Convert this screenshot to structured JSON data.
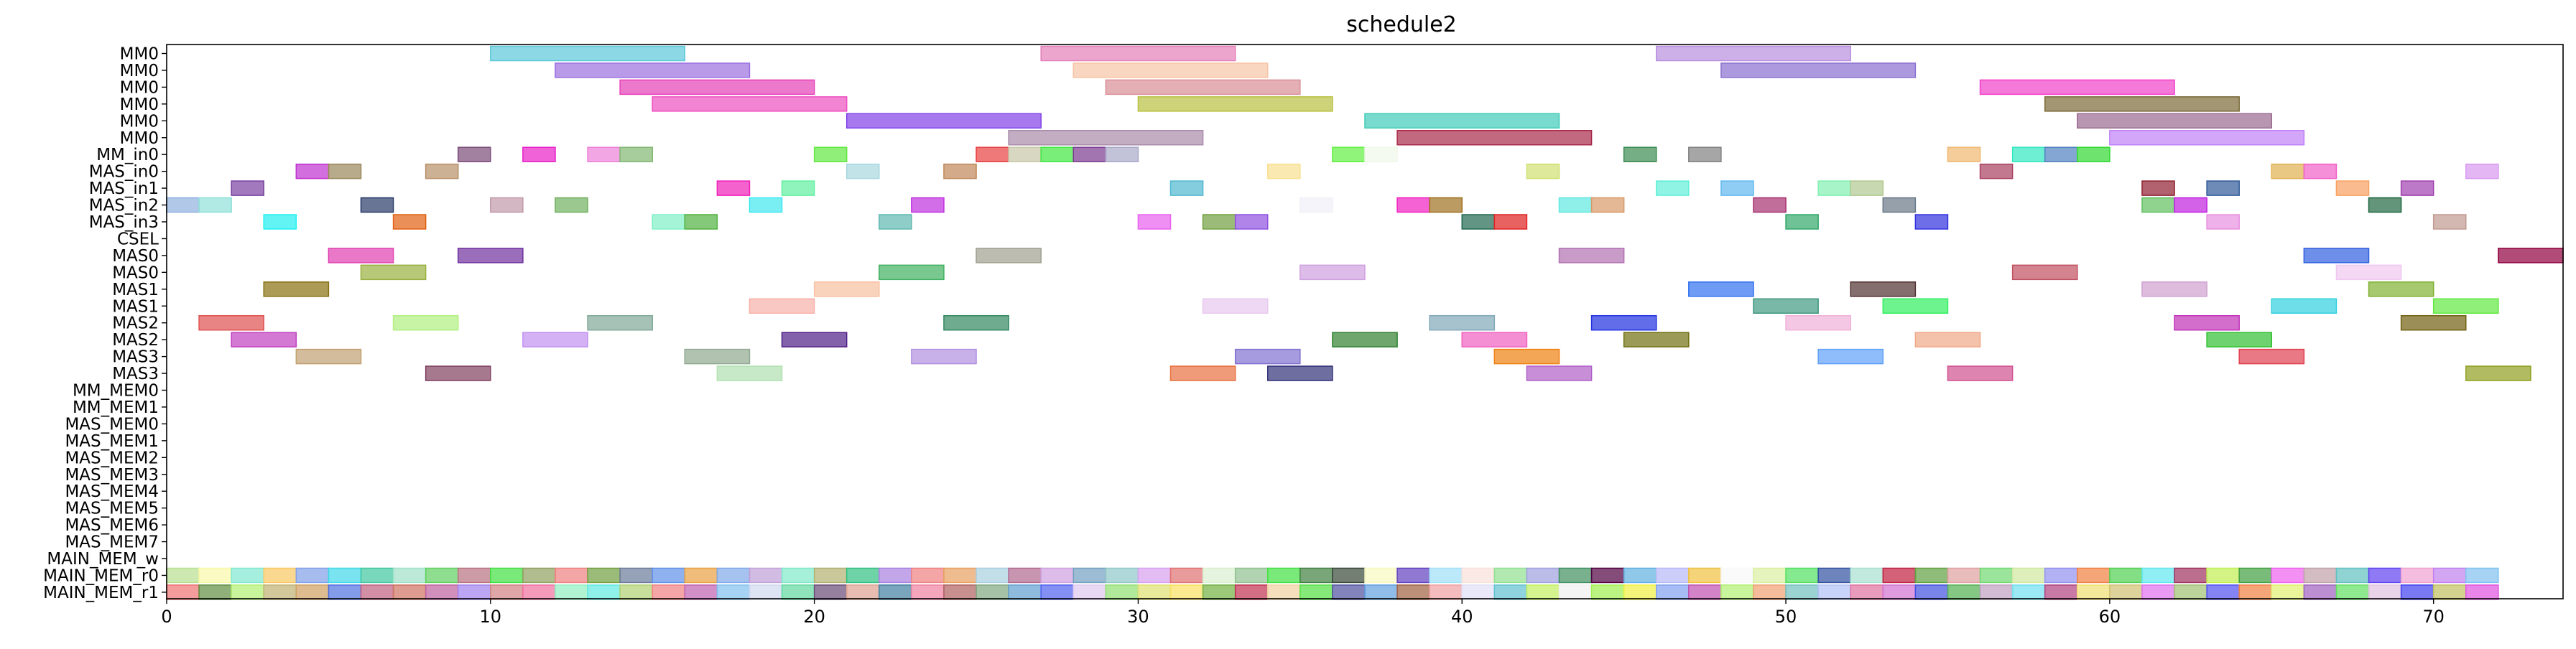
{
  "chart_data": {
    "type": "gantt",
    "title": "schedule2",
    "xlabel": "",
    "ylabel": "",
    "xlim": [
      0,
      74
    ],
    "x_ticks": [
      0,
      10,
      20,
      30,
      40,
      50,
      60,
      70
    ],
    "grid": false,
    "rows": [
      "MM0",
      "MM0",
      "MM0",
      "MM0",
      "MM0",
      "MM0",
      "MM_in0",
      "MAS_in0",
      "MAS_in1",
      "MAS_in2",
      "MAS_in3",
      "CSEL",
      "MAS0",
      "MAS0",
      "MAS1",
      "MAS1",
      "MAS2",
      "MAS2",
      "MAS3",
      "MAS3",
      "MM_MEM0",
      "MM_MEM1",
      "MAS_MEM0",
      "MAS_MEM1",
      "MAS_MEM2",
      "MAS_MEM3",
      "MAS_MEM4",
      "MAS_MEM5",
      "MAS_MEM6",
      "MAS_MEM7",
      "MAIN_MEM_w",
      "MAIN_MEM_r0",
      "MAIN_MEM_r1"
    ],
    "tasks": [
      {
        "row": 0,
        "start": 10,
        "end": 16,
        "color": "#5bc8d8"
      },
      {
        "row": 0,
        "start": 27,
        "end": 33,
        "color": "#e47fb8"
      },
      {
        "row": 0,
        "start": 46,
        "end": 52,
        "color": "#b98ee0"
      },
      {
        "row": 1,
        "start": 12,
        "end": 18,
        "color": "#9a6fe0"
      },
      {
        "row": 1,
        "start": 28,
        "end": 34,
        "color": "#f7c4a4"
      },
      {
        "row": 1,
        "start": 48,
        "end": 54,
        "color": "#8a6fd0"
      },
      {
        "row": 2,
        "start": 14,
        "end": 20,
        "color": "#e640b8"
      },
      {
        "row": 2,
        "start": 29,
        "end": 35,
        "color": "#d98f96"
      },
      {
        "row": 2,
        "start": 56,
        "end": 62,
        "color": "#f040c8"
      },
      {
        "row": 3,
        "start": 15,
        "end": 21,
        "color": "#ee50c0"
      },
      {
        "row": 3,
        "start": 30,
        "end": 36,
        "color": "#b8c040"
      },
      {
        "row": 3,
        "start": 58,
        "end": 64,
        "color": "#7a6a38"
      },
      {
        "row": 4,
        "start": 21,
        "end": 27,
        "color": "#8040e8"
      },
      {
        "row": 4,
        "start": 37,
        "end": 43,
        "color": "#40ccb8"
      },
      {
        "row": 4,
        "start": 59,
        "end": 65,
        "color": "#9a6a90"
      },
      {
        "row": 5,
        "start": 26,
        "end": 32,
        "color": "#a88aa8"
      },
      {
        "row": 5,
        "start": 38,
        "end": 44,
        "color": "#a82848"
      },
      {
        "row": 5,
        "start": 60,
        "end": 66,
        "color": "#c080f8"
      },
      {
        "row": 6,
        "start": 9,
        "end": 10,
        "color": "#7a4a78"
      },
      {
        "row": 6,
        "start": 11,
        "end": 12,
        "color": "#e820c8"
      },
      {
        "row": 6,
        "start": 13,
        "end": 14,
        "color": "#ee80d8"
      },
      {
        "row": 6,
        "start": 14,
        "end": 15,
        "color": "#80b870"
      },
      {
        "row": 6,
        "start": 20,
        "end": 21,
        "color": "#60e840"
      },
      {
        "row": 6,
        "start": 25,
        "end": 26,
        "color": "#e84040"
      },
      {
        "row": 6,
        "start": 26,
        "end": 27,
        "color": "#c8c8a8"
      },
      {
        "row": 6,
        "start": 27,
        "end": 28,
        "color": "#40e840"
      },
      {
        "row": 6,
        "start": 28,
        "end": 29,
        "color": "#7a3a90"
      },
      {
        "row": 6,
        "start": 29,
        "end": 30,
        "color": "#a8a8c8"
      },
      {
        "row": 6,
        "start": 36,
        "end": 37,
        "color": "#60f040"
      },
      {
        "row": 6,
        "start": 37,
        "end": 38,
        "color": "#f0f8e8"
      },
      {
        "row": 6,
        "start": 45,
        "end": 46,
        "color": "#3a8a50"
      },
      {
        "row": 6,
        "start": 47,
        "end": 48,
        "color": "#808080"
      },
      {
        "row": 6,
        "start": 55,
        "end": 56,
        "color": "#f0b870"
      },
      {
        "row": 6,
        "start": 57,
        "end": 58,
        "color": "#30e8c0"
      },
      {
        "row": 6,
        "start": 58,
        "end": 59,
        "color": "#5080c0"
      },
      {
        "row": 6,
        "start": 59,
        "end": 60,
        "color": "#30d830"
      },
      {
        "row": 7,
        "start": 4,
        "end": 5,
        "color": "#c030d0"
      },
      {
        "row": 7,
        "start": 5,
        "end": 6,
        "color": "#98885a"
      },
      {
        "row": 7,
        "start": 8,
        "end": 9,
        "color": "#b89068"
      },
      {
        "row": 7,
        "start": 21,
        "end": 22,
        "color": "#a8d8e0"
      },
      {
        "row": 7,
        "start": 24,
        "end": 25,
        "color": "#c08858"
      },
      {
        "row": 7,
        "start": 34,
        "end": 35,
        "color": "#f8e090"
      },
      {
        "row": 7,
        "start": 42,
        "end": 43,
        "color": "#d0e070"
      },
      {
        "row": 7,
        "start": 56,
        "end": 57,
        "color": "#a84060"
      },
      {
        "row": 7,
        "start": 65,
        "end": 66,
        "color": "#e0b050"
      },
      {
        "row": 7,
        "start": 66,
        "end": 67,
        "color": "#f060c8"
      },
      {
        "row": 7,
        "start": 71,
        "end": 72,
        "color": "#d898f0"
      },
      {
        "row": 8,
        "start": 2,
        "end": 3,
        "color": "#7a40a0"
      },
      {
        "row": 8,
        "start": 17,
        "end": 18,
        "color": "#f020b8"
      },
      {
        "row": 8,
        "start": 19,
        "end": 20,
        "color": "#60f0a0"
      },
      {
        "row": 8,
        "start": 31,
        "end": 32,
        "color": "#50b8d0"
      },
      {
        "row": 8,
        "start": 46,
        "end": 47,
        "color": "#60f0d8"
      },
      {
        "row": 8,
        "start": 48,
        "end": 49,
        "color": "#60b8f0"
      },
      {
        "row": 8,
        "start": 51,
        "end": 52,
        "color": "#80f0b0"
      },
      {
        "row": 8,
        "start": 52,
        "end": 53,
        "color": "#b0c890"
      },
      {
        "row": 8,
        "start": 61,
        "end": 62,
        "color": "#902030"
      },
      {
        "row": 8,
        "start": 63,
        "end": 64,
        "color": "#305a98"
      },
      {
        "row": 8,
        "start": 67,
        "end": 68,
        "color": "#f8a060"
      },
      {
        "row": 8,
        "start": 69,
        "end": 70,
        "color": "#a040b0"
      },
      {
        "row": 9,
        "start": 0,
        "end": 1,
        "color": "#90b0e0"
      },
      {
        "row": 9,
        "start": 1,
        "end": 2,
        "color": "#90e0d8"
      },
      {
        "row": 9,
        "start": 6,
        "end": 7,
        "color": "#283a68"
      },
      {
        "row": 9,
        "start": 10,
        "end": 11,
        "color": "#c098a8"
      },
      {
        "row": 9,
        "start": 12,
        "end": 13,
        "color": "#70b060"
      },
      {
        "row": 9,
        "start": 18,
        "end": 19,
        "color": "#40e8f0"
      },
      {
        "row": 9,
        "start": 23,
        "end": 24,
        "color": "#c030e0"
      },
      {
        "row": 9,
        "start": 35,
        "end": 36,
        "color": "#f0f0f8"
      },
      {
        "row": 9,
        "start": 38,
        "end": 39,
        "color": "#f020c0"
      },
      {
        "row": 9,
        "start": 39,
        "end": 40,
        "color": "#a07020"
      },
      {
        "row": 9,
        "start": 43,
        "end": 44,
        "color": "#60e8e0"
      },
      {
        "row": 9,
        "start": 44,
        "end": 45,
        "color": "#d89868"
      },
      {
        "row": 9,
        "start": 49,
        "end": 50,
        "color": "#a83070"
      },
      {
        "row": 9,
        "start": 53,
        "end": 54,
        "color": "#687888"
      },
      {
        "row": 9,
        "start": 61,
        "end": 62,
        "color": "#60c060"
      },
      {
        "row": 9,
        "start": 62,
        "end": 63,
        "color": "#c020e0"
      },
      {
        "row": 9,
        "start": 68,
        "end": 69,
        "color": "#206840"
      },
      {
        "row": 10,
        "start": 3,
        "end": 4,
        "color": "#20f0f0"
      },
      {
        "row": 10,
        "start": 7,
        "end": 8,
        "color": "#e06010"
      },
      {
        "row": 10,
        "start": 15,
        "end": 16,
        "color": "#80f0c8"
      },
      {
        "row": 10,
        "start": 16,
        "end": 17,
        "color": "#50b040"
      },
      {
        "row": 10,
        "start": 22,
        "end": 23,
        "color": "#60b8b0"
      },
      {
        "row": 10,
        "start": 30,
        "end": 31,
        "color": "#e860f0"
      },
      {
        "row": 10,
        "start": 32,
        "end": 33,
        "color": "#70a040"
      },
      {
        "row": 10,
        "start": 33,
        "end": 34,
        "color": "#9050e0"
      },
      {
        "row": 10,
        "start": 40,
        "end": 41,
        "color": "#206850"
      },
      {
        "row": 10,
        "start": 41,
        "end": 42,
        "color": "#e02020"
      },
      {
        "row": 10,
        "start": 50,
        "end": 51,
        "color": "#30a868"
      },
      {
        "row": 10,
        "start": 54,
        "end": 55,
        "color": "#3030e0"
      },
      {
        "row": 10,
        "start": 63,
        "end": 64,
        "color": "#e890e0"
      },
      {
        "row": 10,
        "start": 70,
        "end": 71,
        "color": "#c09890"
      },
      {
        "row": 12,
        "start": 5,
        "end": 7,
        "color": "#e040b0"
      },
      {
        "row": 12,
        "start": 9,
        "end": 11,
        "color": "#7030a0"
      },
      {
        "row": 12,
        "start": 25,
        "end": 27,
        "color": "#a0a090"
      },
      {
        "row": 12,
        "start": 43,
        "end": 45,
        "color": "#b070b0"
      },
      {
        "row": 12,
        "start": 66,
        "end": 68,
        "color": "#3060e0"
      },
      {
        "row": 12,
        "start": 72,
        "end": 74,
        "color": "#900040"
      },
      {
        "row": 13,
        "start": 6,
        "end": 8,
        "color": "#98b040"
      },
      {
        "row": 13,
        "start": 22,
        "end": 24,
        "color": "#40b060"
      },
      {
        "row": 13,
        "start": 35,
        "end": 37,
        "color": "#d0a0e0"
      },
      {
        "row": 13,
        "start": 57,
        "end": 59,
        "color": "#c05060"
      },
      {
        "row": 13,
        "start": 67,
        "end": 69,
        "color": "#f0c8f0"
      },
      {
        "row": 14,
        "start": 3,
        "end": 5,
        "color": "#887010"
      },
      {
        "row": 14,
        "start": 20,
        "end": 22,
        "color": "#f8c0a0"
      },
      {
        "row": 14,
        "start": 47,
        "end": 49,
        "color": "#3070f0"
      },
      {
        "row": 14,
        "start": 52,
        "end": 54,
        "color": "#503030"
      },
      {
        "row": 14,
        "start": 61,
        "end": 63,
        "color": "#d0a0d0"
      },
      {
        "row": 14,
        "start": 68,
        "end": 70,
        "color": "#80b030"
      },
      {
        "row": 15,
        "start": 18,
        "end": 20,
        "color": "#f8b0a8"
      },
      {
        "row": 15,
        "start": 32,
        "end": 34,
        "color": "#e8c8f0"
      },
      {
        "row": 15,
        "start": 49,
        "end": 51,
        "color": "#409880"
      },
      {
        "row": 15,
        "start": 53,
        "end": 55,
        "color": "#30f060"
      },
      {
        "row": 15,
        "start": 65,
        "end": 67,
        "color": "#30d0e0"
      },
      {
        "row": 15,
        "start": 70,
        "end": 72,
        "color": "#60e840"
      },
      {
        "row": 16,
        "start": 1,
        "end": 3,
        "color": "#e05050"
      },
      {
        "row": 16,
        "start": 7,
        "end": 9,
        "color": "#b0f080"
      },
      {
        "row": 16,
        "start": 13,
        "end": 15,
        "color": "#80a898"
      },
      {
        "row": 16,
        "start": 24,
        "end": 26,
        "color": "#308860"
      },
      {
        "row": 16,
        "start": 39,
        "end": 41,
        "color": "#80a8b8"
      },
      {
        "row": 16,
        "start": 44,
        "end": 46,
        "color": "#2030e0"
      },
      {
        "row": 16,
        "start": 50,
        "end": 52,
        "color": "#f0b0d8"
      },
      {
        "row": 16,
        "start": 62,
        "end": 64,
        "color": "#c030b8"
      },
      {
        "row": 16,
        "start": 69,
        "end": 71,
        "color": "#706010"
      },
      {
        "row": 17,
        "start": 2,
        "end": 4,
        "color": "#c040c0"
      },
      {
        "row": 17,
        "start": 11,
        "end": 13,
        "color": "#c090f0"
      },
      {
        "row": 17,
        "start": 19,
        "end": 21,
        "color": "#502088"
      },
      {
        "row": 17,
        "start": 36,
        "end": 38,
        "color": "#308030"
      },
      {
        "row": 17,
        "start": 40,
        "end": 42,
        "color": "#f060c0"
      },
      {
        "row": 17,
        "start": 45,
        "end": 47,
        "color": "#707010"
      },
      {
        "row": 17,
        "start": 54,
        "end": 56,
        "color": "#f0a888"
      },
      {
        "row": 17,
        "start": 63,
        "end": 65,
        "color": "#30c030"
      },
      {
        "row": 18,
        "start": 4,
        "end": 6,
        "color": "#c0a070"
      },
      {
        "row": 18,
        "start": 16,
        "end": 18,
        "color": "#90a890"
      },
      {
        "row": 18,
        "start": 23,
        "end": 25,
        "color": "#b090e0"
      },
      {
        "row": 18,
        "start": 33,
        "end": 35,
        "color": "#8070d0"
      },
      {
        "row": 18,
        "start": 41,
        "end": 43,
        "color": "#f08010"
      },
      {
        "row": 18,
        "start": 51,
        "end": 53,
        "color": "#60a0f8"
      },
      {
        "row": 18,
        "start": 64,
        "end": 66,
        "color": "#e04050"
      },
      {
        "row": 19,
        "start": 8,
        "end": 10,
        "color": "#804060"
      },
      {
        "row": 19,
        "start": 17,
        "end": 19,
        "color": "#b0e0b0"
      },
      {
        "row": 19,
        "start": 31,
        "end": 33,
        "color": "#e87040"
      },
      {
        "row": 19,
        "start": 34,
        "end": 36,
        "color": "#303078"
      },
      {
        "row": 19,
        "start": 42,
        "end": 44,
        "color": "#b060c8"
      },
      {
        "row": 19,
        "start": 55,
        "end": 57,
        "color": "#d05090"
      },
      {
        "row": 19,
        "start": 71,
        "end": 73,
        "color": "#90a020"
      }
    ],
    "unit_rows": [
      {
        "row": 31,
        "start": 0,
        "end": 72,
        "colors": [
          "#b8e090",
          "#f8f8a8",
          "#80e8d0",
          "#f8c860",
          "#80a0e8",
          "#40d8e8",
          "#40c8a0",
          "#a0e0c8",
          "#60d060",
          "#b87080",
          "#40e040",
          "#90a060",
          "#f08080",
          "#70a040",
          "#6a7a98",
          "#6090e8",
          "#e8a040",
          "#80a8e8",
          "#c0a0d8",
          "#80e8c8",
          "#b0b070",
          "#30c080",
          "#a880e0",
          "#f08080",
          "#e8a060",
          "#a8d0e0",
          "#b06890",
          "#d0a0e0",
          "#70a0c0",
          "#90c8c8",
          "#d8a0f0",
          "#e07070",
          "#d8f0d0",
          "#90c090",
          "#40e040",
          "#408040",
          "#384838",
          "#f8f8c0",
          "#6040c0",
          "#a0e0f8",
          "#f8e0d8",
          "#90e090",
          "#a0a0e0",
          "#409060",
          "#500040",
          "#60b0e0",
          "#b8b8f8",
          "#f0c040",
          "#f8f8f8",
          "#d8f0a0",
          "#50e060",
          "#3050a0",
          "#a8e0d0",
          "#c02040",
          "#60a040",
          "#e0a0a0",
          "#70d870",
          "#d0e8a0",
          "#9090f0",
          "#f08040",
          "#50d050",
          "#60e8f0",
          "#a03060",
          "#c0f050",
          "#40a040",
          "#f060f0",
          "#c0a0a8",
          "#60c0c0",
          "#6040f0",
          "#f0a0d0",
          "#c080f0",
          "#80c0f0"
        ]
      },
      {
        "row": 32,
        "start": 0,
        "end": 72,
        "colors": [
          "#f07070",
          "#609040",
          "#b0f070",
          "#c0b070",
          "#d0a060",
          "#5070e0",
          "#c06080",
          "#d07060",
          "#c060a0",
          "#a080f0",
          "#d08080",
          "#f070a0",
          "#90f0c0",
          "#60e8e0",
          "#b0d070",
          "#f08080",
          "#c060b0",
          "#80c0f0",
          "#d0d8f0",
          "#60d8a0",
          "#6a4a78",
          "#e0a090",
          "#4080a0",
          "#f080a0",
          "#b06060",
          "#80a880",
          "#60a0d0",
          "#5060f0",
          "#e0c8f0",
          "#90e070",
          "#e0e070",
          "#f8e060",
          "#70b040",
          "#c03050",
          "#f0d0a0",
          "#50e040",
          "#5050a0",
          "#60a0e0",
          "#a06040",
          "#f0a0a0",
          "#e0e0f8",
          "#60c0d0",
          "#c0f060",
          "#f0f0f0",
          "#a0f050",
          "#f0f040",
          "#80a0f0",
          "#c050b0",
          "#b0f070",
          "#f0a070",
          "#70c0c0",
          "#b0c0f8",
          "#e070a0",
          "#d070d0",
          "#4050e0",
          "#50b050",
          "#c0a0c0",
          "#70e0f0",
          "#b04080",
          "#f0e070",
          "#d0c070",
          "#e070f0",
          "#a0c070",
          "#5050f0",
          "#f08040",
          "#e0f070",
          "#a060c0",
          "#60e060",
          "#e0c0e0",
          "#4040f0",
          "#c0c060",
          "#e050e0"
        ]
      }
    ]
  }
}
